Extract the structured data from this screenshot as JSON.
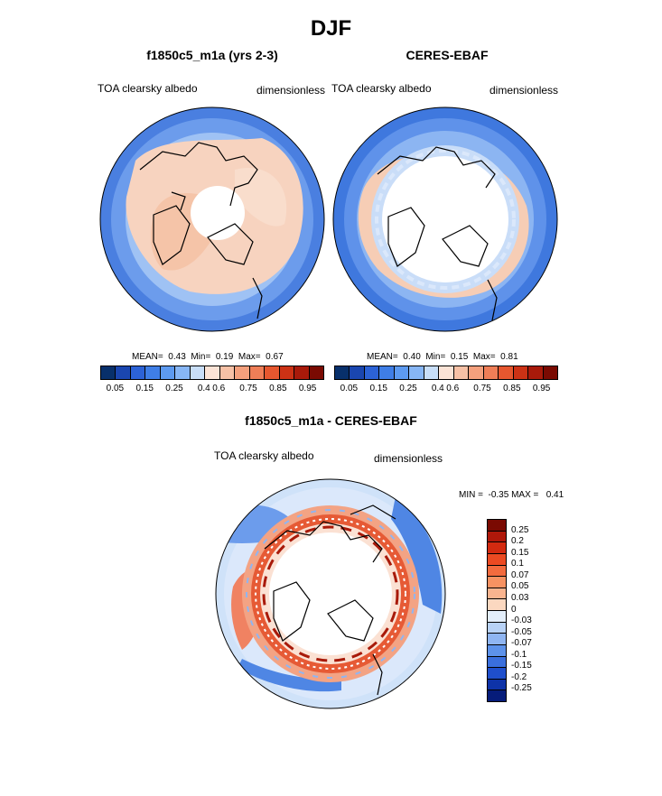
{
  "figure": {
    "title": "DJF"
  },
  "panels": [
    {
      "title": "f1850c5_m1a (yrs 2-3)",
      "left_label": "TOA clearsky albedo",
      "right_label": "dimensionless",
      "stats": {
        "mean_label": "MEAN=",
        "mean": "0.43",
        "min_label": "Min=",
        "min": "0.19",
        "max_label": "Max=",
        "max": "0.67"
      }
    },
    {
      "title": "CERES-EBAF",
      "left_label": "TOA clearsky albedo",
      "right_label": "dimensionless",
      "stats": {
        "mean_label": "MEAN=",
        "mean": "0.40",
        "min_label": "Min=",
        "min": "0.15",
        "max_label": "Max=",
        "max": "0.81"
      }
    },
    {
      "title": "f1850c5_m1a - CERES-EBAF",
      "left_label": "TOA clearsky albedo",
      "right_label": "dimensionless",
      "stats_line": "MIN =  -0.35 MAX =   0.41"
    }
  ],
  "albedo_colorbar": {
    "colors": [
      "#08306b",
      "#1a46b0",
      "#2c62d6",
      "#3f7ee6",
      "#5d9af0",
      "#87b6f5",
      "#c8def8",
      "#fbe3d6",
      "#f7c1a6",
      "#f4a07d",
      "#ef7e57",
      "#e6572f",
      "#cc3215",
      "#a81a0a",
      "#7a0a02"
    ],
    "ticks": [
      "0.05",
      "0.15",
      "0.25",
      "0.4",
      "0.6",
      "0.75",
      "0.85",
      "0.95"
    ]
  },
  "diff_colorbar": {
    "colors": [
      "#7a0a02",
      "#b0180a",
      "#d32a10",
      "#ec4a22",
      "#f36b3e",
      "#f79262",
      "#f9b48f",
      "#fbd8c0",
      "#e3eefa",
      "#b8d2f6",
      "#8fb5f2",
      "#5d92ea",
      "#3a6fdd",
      "#1f4fcc",
      "#0e33a8",
      "#061c7a"
    ],
    "ticks": [
      "0.25",
      "0.2",
      "0.15",
      "0.1",
      "0.07",
      "0.05",
      "0.03",
      "0",
      "-0.03",
      "-0.05",
      "-0.07",
      "-0.1",
      "-0.15",
      "-0.2",
      "-0.25"
    ]
  }
}
